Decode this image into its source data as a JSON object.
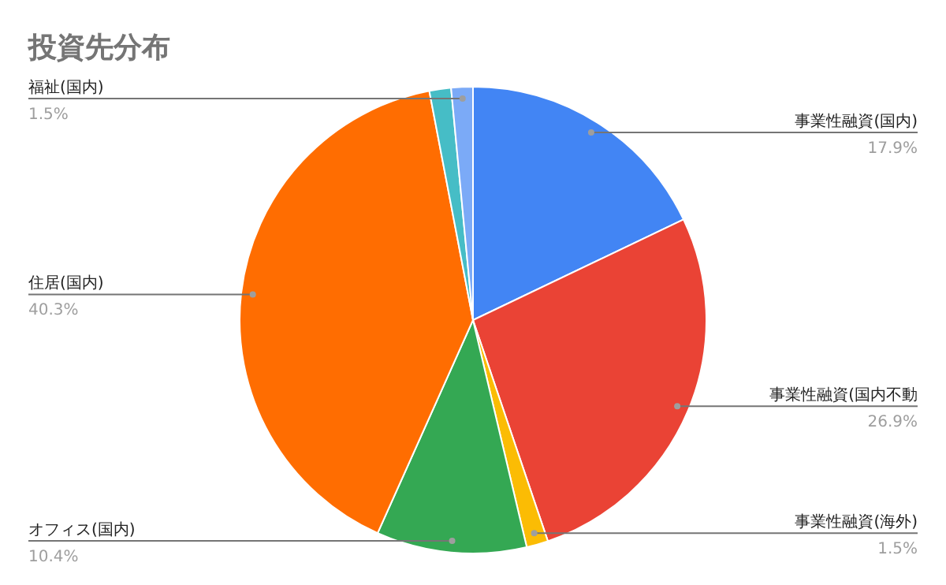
{
  "chart_data": {
    "type": "pie",
    "title": "投資先分布",
    "categories": [
      "事業性融資(国内)",
      "事業性融資(国内不動",
      "事業性融資(海外)",
      "オフィス(国内)",
      "住居(国内)",
      null,
      "福祉(国内)"
    ],
    "values": [
      17.9,
      26.9,
      1.5,
      10.4,
      40.3,
      1.5,
      1.5
    ],
    "value_labels": [
      "17.9%",
      "26.9%",
      "1.5%",
      "10.4%",
      "40.3%",
      null,
      "1.5%"
    ],
    "colors": [
      "#4285f4",
      "#ea4335",
      "#fbbc04",
      "#34a853",
      "#ff6d01",
      "#46bdc6",
      "#7baaf7"
    ],
    "legend": false
  }
}
